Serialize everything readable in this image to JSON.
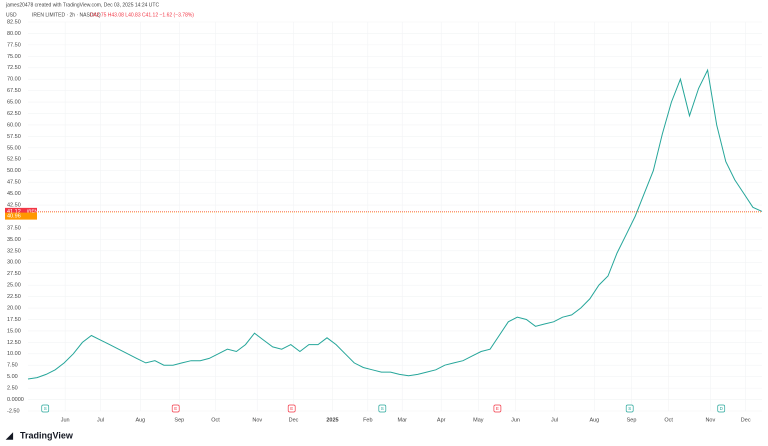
{
  "chart_data": {
    "type": "line",
    "subtitle": "james20478 created with TradingView.com, Dec 03, 2025 14:24 UTC",
    "title": "IREN LIMITED · 2h · NASDAQ",
    "ohlc": "O42.75 H43.08 L40.83 C41.12 −1.62 (−3.78%)",
    "currency": "USD",
    "brand": "TradingView",
    "grid": true,
    "series": [
      {
        "name": "IREN",
        "color": "#26a69a",
        "values": [
          4.5,
          4.8,
          5.5,
          6.5,
          8,
          10,
          12.5,
          14,
          13,
          12,
          11,
          10,
          9,
          8,
          8.5,
          7.5,
          7.5,
          8,
          8.5,
          8.5,
          9,
          10,
          11,
          10.5,
          12,
          14.5,
          13,
          11.5,
          11,
          12,
          10.5,
          12,
          12,
          13.5,
          12,
          10,
          8,
          7,
          6.5,
          6,
          6,
          5.5,
          5.2,
          5.5,
          6,
          6.5,
          7.5,
          8,
          8.5,
          9.5,
          10.5,
          11,
          14,
          17,
          18,
          17.5,
          16,
          16.5,
          17,
          18,
          18.5,
          20,
          22,
          25,
          27,
          32,
          36,
          40,
          45,
          50,
          58,
          65,
          70,
          62,
          68,
          72,
          60,
          52,
          48,
          45,
          42,
          41.12
        ]
      }
    ],
    "last_price": {
      "value": 41.12,
      "label": "41.12",
      "color": "#f23645"
    },
    "extra_price": {
      "value": 40.96,
      "label": "40.96",
      "color": "#ff9800"
    },
    "xlim": [
      0,
      81
    ],
    "xticks": [
      {
        "value": 4.1,
        "label": "Jun"
      },
      {
        "value": 8.0,
        "label": "Jul"
      },
      {
        "value": 12.4,
        "label": "Aug"
      },
      {
        "value": 16.7,
        "label": "Sep"
      },
      {
        "value": 20.7,
        "label": "Oct"
      },
      {
        "value": 25.3,
        "label": "Nov"
      },
      {
        "value": 29.3,
        "label": "Dec"
      },
      {
        "value": 33.6,
        "label": "2025"
      },
      {
        "value": 37.5,
        "label": "Feb"
      },
      {
        "value": 41.3,
        "label": "Mar"
      },
      {
        "value": 45.6,
        "label": "Apr"
      },
      {
        "value": 49.7,
        "label": "May"
      },
      {
        "value": 53.8,
        "label": "Jun"
      },
      {
        "value": 58.1,
        "label": "Jul"
      },
      {
        "value": 62.5,
        "label": "Aug"
      },
      {
        "value": 66.6,
        "label": "Sep"
      },
      {
        "value": 70.7,
        "label": "Oct"
      },
      {
        "value": 75.3,
        "label": "Nov"
      },
      {
        "value": 79.2,
        "label": "Dec"
      }
    ],
    "ylim": [
      -2.5,
      82.5
    ],
    "yticks": [
      {
        "value": -2.5,
        "label": "-2.50"
      },
      {
        "value": 0,
        "label": "0.0000"
      },
      {
        "value": 2.5,
        "label": "2.50"
      },
      {
        "value": 5,
        "label": "5.00"
      },
      {
        "value": 7.5,
        "label": "7.50"
      },
      {
        "value": 10,
        "label": "10.00"
      },
      {
        "value": 12.5,
        "label": "12.50"
      },
      {
        "value": 15,
        "label": "15.00"
      },
      {
        "value": 17.5,
        "label": "17.50"
      },
      {
        "value": 20,
        "label": "20.00"
      },
      {
        "value": 22.5,
        "label": "22.50"
      },
      {
        "value": 25,
        "label": "25.00"
      },
      {
        "value": 27.5,
        "label": "27.50"
      },
      {
        "value": 30,
        "label": "30.00"
      },
      {
        "value": 32.5,
        "label": "32.50"
      },
      {
        "value": 35,
        "label": "35.00"
      },
      {
        "value": 37.5,
        "label": "37.50"
      },
      {
        "value": 42.5,
        "label": "42.50"
      },
      {
        "value": 45,
        "label": "45.00"
      },
      {
        "value": 47.5,
        "label": "47.50"
      },
      {
        "value": 50,
        "label": "50.00"
      },
      {
        "value": 52.5,
        "label": "52.50"
      },
      {
        "value": 55,
        "label": "55.00"
      },
      {
        "value": 57.5,
        "label": "57.50"
      },
      {
        "value": 60,
        "label": "60.00"
      },
      {
        "value": 62.5,
        "label": "62.50"
      },
      {
        "value": 65,
        "label": "65.00"
      },
      {
        "value": 67.5,
        "label": "67.50"
      },
      {
        "value": 70,
        "label": "70.00"
      },
      {
        "value": 72.5,
        "label": "72.50"
      },
      {
        "value": 75,
        "label": "75.00"
      },
      {
        "value": 77.5,
        "label": "77.50"
      },
      {
        "value": 80,
        "label": "80.00"
      },
      {
        "value": 82.5,
        "label": "82.50"
      }
    ],
    "events": [
      {
        "x": 1.9,
        "label": "S"
      },
      {
        "x": 16.3,
        "label": "E"
      },
      {
        "x": 29.1,
        "label": "E"
      },
      {
        "x": 39.1,
        "label": "S"
      },
      {
        "x": 51.8,
        "label": "E"
      },
      {
        "x": 66.4,
        "label": "S"
      },
      {
        "x": 76.5,
        "label": "D"
      }
    ]
  }
}
